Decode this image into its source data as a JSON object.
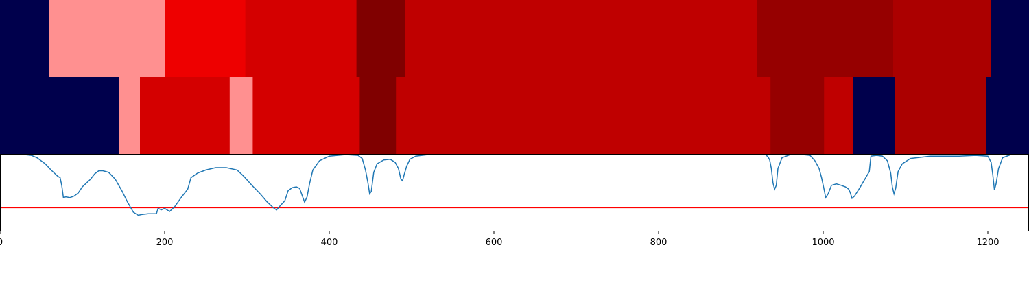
{
  "chart_data": {
    "type": "segmentation-timeline",
    "x_range": [
      0,
      1250
    ],
    "x_ticks": [
      0,
      200,
      400,
      600,
      800,
      1000,
      1200
    ],
    "x_tick_labels": [
      "0",
      "200",
      "400",
      "600",
      "800",
      "1000",
      "1200"
    ],
    "tracks": [
      {
        "segments": [
          {
            "start": 0,
            "end": 60,
            "color": "#00004c"
          },
          {
            "start": 60,
            "end": 200,
            "color": "#ff9090"
          },
          {
            "start": 200,
            "end": 298,
            "color": "#ee0000"
          },
          {
            "start": 298,
            "end": 433,
            "color": "#d40000"
          },
          {
            "start": 433,
            "end": 492,
            "color": "#800000"
          },
          {
            "start": 492,
            "end": 920,
            "color": "#bf0000"
          },
          {
            "start": 920,
            "end": 1085,
            "color": "#960000"
          },
          {
            "start": 1085,
            "end": 1204,
            "color": "#ab0000"
          },
          {
            "start": 1204,
            "end": 1250,
            "color": "#00004c"
          }
        ]
      },
      {
        "segments": [
          {
            "start": 0,
            "end": 145,
            "color": "#00004c"
          },
          {
            "start": 145,
            "end": 170,
            "color": "#ff9090"
          },
          {
            "start": 170,
            "end": 279,
            "color": "#d40000"
          },
          {
            "start": 279,
            "end": 307,
            "color": "#ff9090"
          },
          {
            "start": 307,
            "end": 437,
            "color": "#d40000"
          },
          {
            "start": 437,
            "end": 481,
            "color": "#800000"
          },
          {
            "start": 481,
            "end": 936,
            "color": "#bf0000"
          },
          {
            "start": 936,
            "end": 1001,
            "color": "#960000"
          },
          {
            "start": 1001,
            "end": 1036,
            "color": "#bf0000"
          },
          {
            "start": 1036,
            "end": 1087,
            "color": "#00004c"
          },
          {
            "start": 1087,
            "end": 1198,
            "color": "#ab0000"
          },
          {
            "start": 1198,
            "end": 1250,
            "color": "#00004c"
          }
        ]
      }
    ],
    "line": {
      "color": "#1f77b4",
      "y_range": [
        0,
        1
      ],
      "threshold": 0.31,
      "threshold_color": "#ff0000",
      "points": [
        [
          0,
          1.0
        ],
        [
          30,
          1.0
        ],
        [
          38,
          0.99
        ],
        [
          45,
          0.96
        ],
        [
          55,
          0.88
        ],
        [
          62,
          0.8
        ],
        [
          67,
          0.75
        ],
        [
          70,
          0.72
        ],
        [
          73,
          0.7
        ],
        [
          75,
          0.6
        ],
        [
          77,
          0.44
        ],
        [
          80,
          0.45
        ],
        [
          85,
          0.44
        ],
        [
          90,
          0.46
        ],
        [
          95,
          0.5
        ],
        [
          100,
          0.58
        ],
        [
          105,
          0.63
        ],
        [
          110,
          0.68
        ],
        [
          115,
          0.75
        ],
        [
          120,
          0.79
        ],
        [
          125,
          0.79
        ],
        [
          132,
          0.77
        ],
        [
          140,
          0.68
        ],
        [
          148,
          0.53
        ],
        [
          155,
          0.38
        ],
        [
          162,
          0.25
        ],
        [
          168,
          0.21
        ],
        [
          172,
          0.22
        ],
        [
          180,
          0.23
        ],
        [
          190,
          0.23
        ],
        [
          192,
          0.3
        ],
        [
          196,
          0.28
        ],
        [
          200,
          0.3
        ],
        [
          206,
          0.26
        ],
        [
          212,
          0.32
        ],
        [
          220,
          0.44
        ],
        [
          228,
          0.55
        ],
        [
          232,
          0.7
        ],
        [
          240,
          0.76
        ],
        [
          250,
          0.8
        ],
        [
          262,
          0.83
        ],
        [
          275,
          0.83
        ],
        [
          288,
          0.8
        ],
        [
          296,
          0.72
        ],
        [
          306,
          0.6
        ],
        [
          316,
          0.49
        ],
        [
          324,
          0.39
        ],
        [
          333,
          0.3
        ],
        [
          336,
          0.28
        ],
        [
          340,
          0.33
        ],
        [
          346,
          0.4
        ],
        [
          350,
          0.53
        ],
        [
          355,
          0.57
        ],
        [
          360,
          0.58
        ],
        [
          364,
          0.56
        ],
        [
          368,
          0.44
        ],
        [
          370,
          0.38
        ],
        [
          373,
          0.45
        ],
        [
          376,
          0.62
        ],
        [
          380,
          0.8
        ],
        [
          388,
          0.92
        ],
        [
          400,
          0.98
        ],
        [
          420,
          1.0
        ],
        [
          435,
          0.99
        ],
        [
          440,
          0.95
        ],
        [
          444,
          0.8
        ],
        [
          447,
          0.63
        ],
        [
          449,
          0.49
        ],
        [
          451,
          0.52
        ],
        [
          454,
          0.77
        ],
        [
          458,
          0.88
        ],
        [
          466,
          0.93
        ],
        [
          474,
          0.94
        ],
        [
          480,
          0.9
        ],
        [
          484,
          0.82
        ],
        [
          487,
          0.68
        ],
        [
          489,
          0.66
        ],
        [
          491,
          0.74
        ],
        [
          494,
          0.85
        ],
        [
          498,
          0.94
        ],
        [
          505,
          0.98
        ],
        [
          520,
          1.0
        ],
        [
          930,
          1.0
        ],
        [
          933,
          0.97
        ],
        [
          935,
          0.93
        ],
        [
          937,
          0.82
        ],
        [
          939,
          0.63
        ],
        [
          941,
          0.55
        ],
        [
          943,
          0.6
        ],
        [
          945,
          0.82
        ],
        [
          950,
          0.96
        ],
        [
          960,
          1.0
        ],
        [
          975,
          1.0
        ],
        [
          984,
          0.99
        ],
        [
          990,
          0.92
        ],
        [
          995,
          0.82
        ],
        [
          998,
          0.7
        ],
        [
          1001,
          0.55
        ],
        [
          1003,
          0.44
        ],
        [
          1006,
          0.49
        ],
        [
          1010,
          0.6
        ],
        [
          1016,
          0.62
        ],
        [
          1022,
          0.6
        ],
        [
          1027,
          0.58
        ],
        [
          1031,
          0.55
        ],
        [
          1033,
          0.5
        ],
        [
          1035,
          0.43
        ],
        [
          1038,
          0.46
        ],
        [
          1044,
          0.56
        ],
        [
          1050,
          0.67
        ],
        [
          1056,
          0.78
        ],
        [
          1058,
          0.98
        ],
        [
          1065,
          0.99
        ],
        [
          1072,
          0.98
        ],
        [
          1078,
          0.92
        ],
        [
          1082,
          0.76
        ],
        [
          1084,
          0.58
        ],
        [
          1086,
          0.49
        ],
        [
          1088,
          0.56
        ],
        [
          1091,
          0.78
        ],
        [
          1096,
          0.88
        ],
        [
          1106,
          0.95
        ],
        [
          1130,
          0.98
        ],
        [
          1165,
          0.98
        ],
        [
          1185,
          0.99
        ],
        [
          1200,
          0.98
        ],
        [
          1204,
          0.9
        ],
        [
          1206,
          0.74
        ],
        [
          1208,
          0.54
        ],
        [
          1210,
          0.62
        ],
        [
          1213,
          0.82
        ],
        [
          1218,
          0.96
        ],
        [
          1228,
          1.0
        ],
        [
          1250,
          1.0
        ]
      ]
    }
  }
}
